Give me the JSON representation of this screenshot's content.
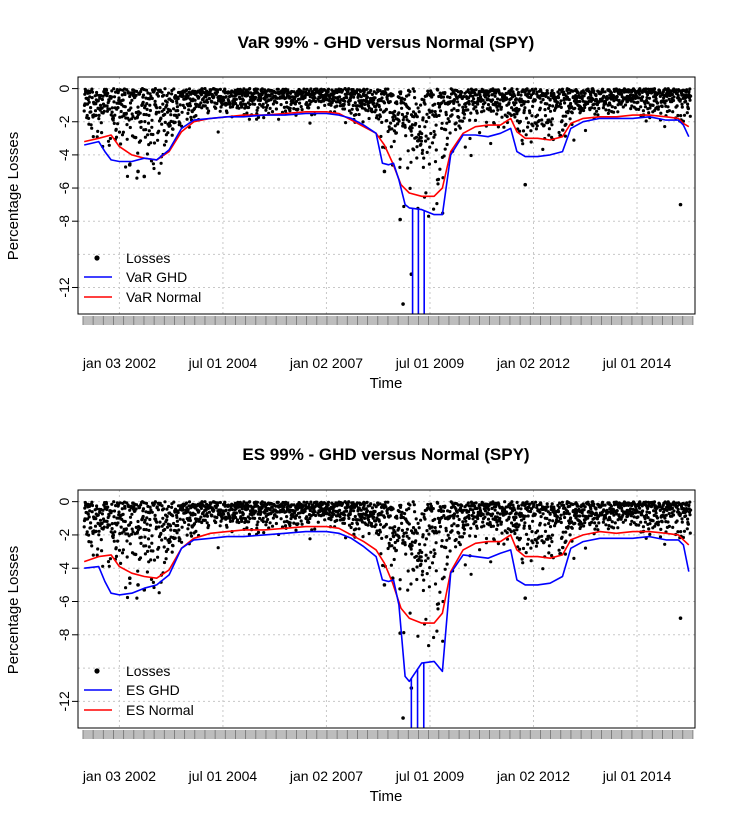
{
  "chart_data": [
    {
      "type": "line",
      "title": "VaR 99% - GHD versus Normal (SPY)",
      "xlabel": "Time",
      "ylabel": "Percentage Losses",
      "x_tick_labels": [
        "jan 03 2002",
        "jul 01 2004",
        "jan 02 2007",
        "jul 01 2009",
        "jan 02 2012",
        "jul 01 2014"
      ],
      "x_tick_years": [
        2002.0,
        2004.5,
        2007.0,
        2009.5,
        2012.0,
        2014.5
      ],
      "xlim": [
        2001.0,
        2015.9
      ],
      "y_ticks": [
        0,
        -2,
        -4,
        -6,
        -8,
        -12
      ],
      "ylim": [
        -13.6,
        0.7
      ],
      "grid": true,
      "legend_position": "bottom-left",
      "legend": [
        {
          "label": "Losses",
          "symbol": "point",
          "color": "#000000"
        },
        {
          "label": "VaR GHD",
          "symbol": "line",
          "color": "#0000ff"
        },
        {
          "label": "VaR Normal",
          "symbol": "line",
          "color": "#ff0000"
        }
      ],
      "series": [
        {
          "key": "normal",
          "color": "#ff0000",
          "x": [
            2001.15,
            2001.5,
            2001.8,
            2002.0,
            2002.3,
            2002.6,
            2002.9,
            2003.2,
            2003.5,
            2003.8,
            2004.2,
            2004.6,
            2005.0,
            2005.5,
            2006.0,
            2006.5,
            2007.0,
            2007.3,
            2007.6,
            2007.9,
            2008.2,
            2008.4,
            2008.6,
            2008.8,
            2009.0,
            2009.3,
            2009.6,
            2009.8,
            2010.0,
            2010.3,
            2010.6,
            2010.9,
            2011.2,
            2011.45,
            2011.6,
            2011.8,
            2012.1,
            2012.4,
            2012.7,
            2012.9,
            2013.2,
            2013.6,
            2014.0,
            2014.4,
            2014.8,
            2015.2,
            2015.5,
            2015.62,
            2015.75
          ],
          "y": [
            -3.2,
            -3.0,
            -2.8,
            -3.5,
            -4.0,
            -4.2,
            -4.3,
            -3.8,
            -2.6,
            -2.0,
            -1.8,
            -1.7,
            -1.6,
            -1.6,
            -1.5,
            -1.4,
            -1.4,
            -1.5,
            -1.9,
            -2.3,
            -2.7,
            -3.4,
            -4.5,
            -5.8,
            -6.3,
            -6.5,
            -6.5,
            -6.0,
            -3.8,
            -2.7,
            -2.3,
            -2.2,
            -2.2,
            -1.8,
            -2.6,
            -3.0,
            -3.0,
            -3.1,
            -2.9,
            -2.1,
            -1.8,
            -1.7,
            -1.7,
            -1.6,
            -1.6,
            -1.7,
            -1.8,
            -2.1,
            -2.3
          ]
        },
        {
          "key": "ghd",
          "color": "#0000ff",
          "x": [
            2001.15,
            2001.5,
            2001.65,
            2001.8,
            2002.0,
            2002.3,
            2002.6,
            2002.9,
            2003.2,
            2003.5,
            2003.8,
            2004.2,
            2004.6,
            2005.0,
            2005.5,
            2006.0,
            2006.5,
            2007.0,
            2007.3,
            2007.6,
            2007.9,
            2008.2,
            2008.35,
            2008.5,
            2008.62,
            2008.75,
            2008.9,
            2009.0,
            2009.3,
            2009.6,
            2009.8,
            2010.0,
            2010.3,
            2010.6,
            2010.9,
            2011.2,
            2011.45,
            2011.6,
            2011.8,
            2012.1,
            2012.4,
            2012.7,
            2012.9,
            2013.2,
            2013.6,
            2014.0,
            2014.4,
            2014.8,
            2015.2,
            2015.5,
            2015.62,
            2015.75
          ],
          "y": [
            -3.4,
            -3.2,
            -3.8,
            -4.3,
            -4.4,
            -4.4,
            -4.2,
            -4.3,
            -3.7,
            -2.4,
            -1.9,
            -1.8,
            -1.7,
            -1.7,
            -1.6,
            -1.6,
            -1.5,
            -1.5,
            -1.6,
            -1.8,
            -2.2,
            -2.7,
            -4.5,
            -4.6,
            -4.5,
            -5.5,
            -7.0,
            -7.2,
            -7.3,
            -7.6,
            -7.6,
            -4.0,
            -2.8,
            -2.8,
            -2.9,
            -2.7,
            -2.4,
            -3.8,
            -4.1,
            -4.1,
            -4.0,
            -3.8,
            -2.4,
            -2.0,
            -1.8,
            -1.8,
            -1.8,
            -1.7,
            -1.9,
            -1.9,
            -2.2,
            -2.9
          ]
        }
      ],
      "spikes": {
        "color": "#0000ff",
        "x": [
          2009.08,
          2009.22,
          2009.36
        ],
        "y": [
          -13.6,
          -13.6,
          -13.6
        ]
      },
      "losses": {
        "color": "#000000",
        "outliers": {
          "x": [
            2002.45,
            2002.6,
            2008.78,
            2008.85,
            2008.4,
            2011.8,
            2015.55,
            2009.05,
            2008.6,
            2002.25
          ],
          "y": [
            -5.0,
            -5.3,
            -7.9,
            -13.0,
            -5.0,
            -5.8,
            -7.0,
            -11.2,
            -4.6,
            -4.6
          ]
        }
      }
    },
    {
      "type": "line",
      "title": "ES 99% - GHD versus Normal (SPY)",
      "xlabel": "Time",
      "ylabel": "Percentage Losses",
      "x_tick_labels": [
        "jan 03 2002",
        "jul 01 2004",
        "jan 02 2007",
        "jul 01 2009",
        "jan 02 2012",
        "jul 01 2014"
      ],
      "x_tick_years": [
        2002.0,
        2004.5,
        2007.0,
        2009.5,
        2012.0,
        2014.5
      ],
      "xlim": [
        2001.0,
        2015.9
      ],
      "y_ticks": [
        0,
        -2,
        -4,
        -6,
        -8,
        -12
      ],
      "ylim": [
        -13.6,
        0.7
      ],
      "grid": true,
      "legend_position": "bottom-left",
      "legend": [
        {
          "label": "Losses",
          "symbol": "point",
          "color": "#000000"
        },
        {
          "label": "ES GHD",
          "symbol": "line",
          "color": "#0000ff"
        },
        {
          "label": "ES Normal",
          "symbol": "line",
          "color": "#ff0000"
        }
      ],
      "series": [
        {
          "key": "normal",
          "color": "#ff0000",
          "x": [
            2001.15,
            2001.5,
            2001.8,
            2002.0,
            2002.3,
            2002.6,
            2002.9,
            2003.2,
            2003.5,
            2003.8,
            2004.2,
            2004.6,
            2005.0,
            2005.5,
            2006.0,
            2006.5,
            2007.0,
            2007.3,
            2007.6,
            2007.9,
            2008.2,
            2008.4,
            2008.6,
            2008.8,
            2009.0,
            2009.3,
            2009.6,
            2009.8,
            2010.0,
            2010.3,
            2010.6,
            2010.9,
            2011.2,
            2011.45,
            2011.6,
            2011.8,
            2012.1,
            2012.4,
            2012.7,
            2012.9,
            2013.2,
            2013.6,
            2014.0,
            2014.4,
            2014.8,
            2015.2,
            2015.5,
            2015.62,
            2015.75
          ],
          "y": [
            -3.6,
            -3.3,
            -3.2,
            -3.9,
            -4.3,
            -4.5,
            -4.6,
            -4.1,
            -2.8,
            -2.2,
            -1.9,
            -1.8,
            -1.7,
            -1.7,
            -1.6,
            -1.5,
            -1.5,
            -1.6,
            -2.0,
            -2.4,
            -2.9,
            -3.7,
            -4.9,
            -6.4,
            -7.0,
            -7.3,
            -7.3,
            -6.7,
            -4.2,
            -2.9,
            -2.5,
            -2.4,
            -2.4,
            -2.0,
            -2.9,
            -3.3,
            -3.3,
            -3.4,
            -3.2,
            -2.3,
            -2.0,
            -1.8,
            -1.9,
            -1.8,
            -1.8,
            -1.9,
            -2.0,
            -2.3,
            -2.6
          ]
        },
        {
          "key": "ghd",
          "color": "#0000ff",
          "x": [
            2001.15,
            2001.5,
            2001.65,
            2001.8,
            2002.0,
            2002.3,
            2002.6,
            2002.9,
            2003.2,
            2003.5,
            2003.8,
            2004.2,
            2004.6,
            2005.0,
            2005.5,
            2006.0,
            2006.5,
            2007.0,
            2007.3,
            2007.6,
            2007.9,
            2008.2,
            2008.35,
            2008.5,
            2008.62,
            2008.75,
            2008.9,
            2009.0,
            2009.3,
            2009.6,
            2009.8,
            2010.0,
            2010.3,
            2010.6,
            2010.9,
            2011.2,
            2011.45,
            2011.6,
            2011.8,
            2012.1,
            2012.4,
            2012.7,
            2012.9,
            2013.2,
            2013.6,
            2014.0,
            2014.4,
            2014.8,
            2015.2,
            2015.5,
            2015.62,
            2015.75
          ],
          "y": [
            -4.0,
            -3.9,
            -4.8,
            -5.5,
            -5.6,
            -5.5,
            -5.2,
            -5.0,
            -4.4,
            -2.8,
            -2.3,
            -2.2,
            -2.1,
            -2.1,
            -2.0,
            -1.9,
            -1.8,
            -1.8,
            -1.9,
            -2.2,
            -2.7,
            -3.3,
            -4.7,
            -4.8,
            -4.7,
            -6.2,
            -10.5,
            -10.8,
            -9.7,
            -9.6,
            -10.2,
            -4.3,
            -3.2,
            -3.3,
            -3.4,
            -3.1,
            -2.9,
            -4.7,
            -5.0,
            -5.0,
            -4.9,
            -4.5,
            -2.8,
            -2.4,
            -2.2,
            -2.2,
            -2.2,
            -2.1,
            -2.3,
            -2.3,
            -2.6,
            -4.2
          ]
        }
      ],
      "spikes": {
        "color": "#0000ff",
        "x": [
          2009.05,
          2009.2,
          2009.35
        ],
        "y": [
          -13.6,
          -13.6,
          -13.6
        ]
      },
      "losses": {
        "color": "#000000",
        "outliers": {
          "x": [
            2002.45,
            2002.6,
            2008.78,
            2008.85,
            2008.4,
            2011.8,
            2015.55,
            2009.05,
            2008.6,
            2002.25
          ],
          "y": [
            -5.0,
            -5.3,
            -7.9,
            -13.0,
            -5.0,
            -5.8,
            -7.0,
            -11.2,
            -4.6,
            -4.6
          ]
        }
      }
    }
  ]
}
